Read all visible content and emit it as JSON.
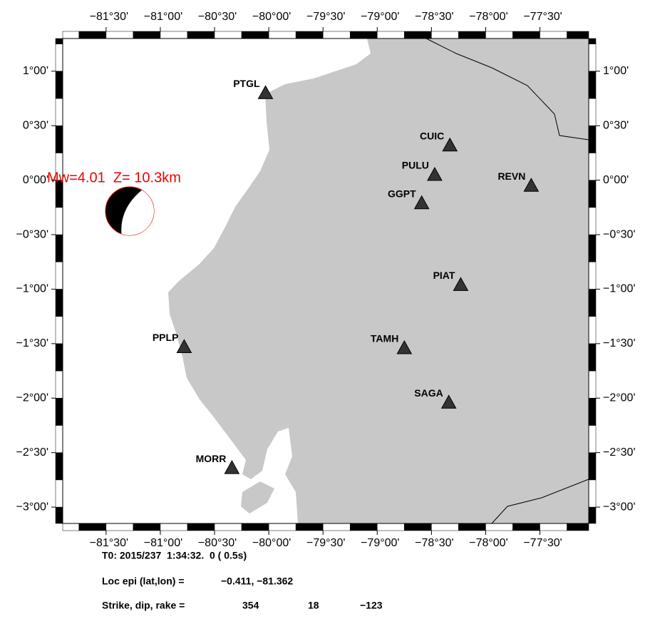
{
  "map": {
    "xlim": [
      -81.9,
      -77.05
    ],
    "ylim": [
      -3.15,
      1.3
    ],
    "xticks": [
      {
        "value": -81.5,
        "label": "−81°30'"
      },
      {
        "value": -81,
        "label": "−81°00'"
      },
      {
        "value": -80.5,
        "label": "−80°30'"
      },
      {
        "value": -80,
        "label": "−80°00'"
      },
      {
        "value": -79.5,
        "label": "−79°30'"
      },
      {
        "value": -79,
        "label": "−79°00'"
      },
      {
        "value": -78.5,
        "label": "−78°30'"
      },
      {
        "value": -78,
        "label": "−78°00'"
      },
      {
        "value": -77.5,
        "label": "−77°30'"
      }
    ],
    "yticks": [
      {
        "value": 1,
        "label": "1°00'"
      },
      {
        "value": 0.5,
        "label": "0°30'"
      },
      {
        "value": 0,
        "label": "0°00'"
      },
      {
        "value": -0.5,
        "label": "−0°30'"
      },
      {
        "value": -1,
        "label": "−1°00'"
      },
      {
        "value": -1.5,
        "label": "−1°30'"
      },
      {
        "value": -2,
        "label": "−2°00'"
      },
      {
        "value": -2.5,
        "label": "−2°30'"
      },
      {
        "value": -3,
        "label": "−3°00'"
      }
    ],
    "stations": [
      {
        "name": "PTGL",
        "lon": -80.03,
        "lat": 0.8
      },
      {
        "name": "CUIC",
        "lon": -78.33,
        "lat": 0.32
      },
      {
        "name": "PULU",
        "lon": -78.47,
        "lat": 0.05
      },
      {
        "name": "GGPT",
        "lon": -78.59,
        "lat": -0.21
      },
      {
        "name": "REVN",
        "lon": -77.58,
        "lat": -0.05
      },
      {
        "name": "PIAT",
        "lon": -78.23,
        "lat": -0.96
      },
      {
        "name": "TAMH",
        "lon": -78.75,
        "lat": -1.54
      },
      {
        "name": "SAGA",
        "lon": -78.34,
        "lat": -2.04
      },
      {
        "name": "PPLP",
        "lon": -80.78,
        "lat": -1.53
      },
      {
        "name": "MORR",
        "lon": -80.34,
        "lat": -2.64
      }
    ],
    "event_label": "Mw=4.01  Z= 10.3km"
  },
  "info": {
    "origin_time": "T0: 2015/237  1:34:32.  0 ( 0.5s)",
    "loc_label": "Loc epi (lat,lon) =",
    "loc_value": "−0.411, −81.362",
    "mech_label": "Strike, dip, rake =",
    "strike": "354",
    "dip": "18",
    "rake": "−123"
  }
}
